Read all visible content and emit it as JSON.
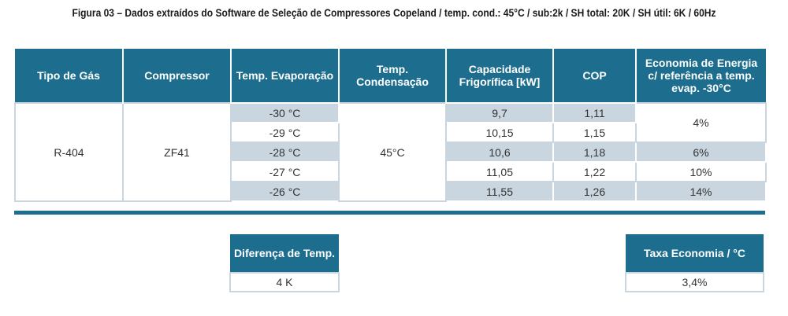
{
  "caption": "Figura 03 – Dados extraídos do Software de Seleção de Compressores Copeland / temp. cond.: 45°C / sub:2k / SH total: 20K / SH útil: 6K / 60Hz",
  "main_table": {
    "headers": [
      "Tipo de Gás",
      "Compressor",
      "Temp. Evaporação",
      "Temp. Condensação",
      "Capacidade Frigorífica [kW]",
      "COP",
      "Economia de Energia c/ referência a temp. evap. -30°C"
    ],
    "gas_type": "R-404",
    "compressor": "ZF41",
    "condensation_temp": "45°C",
    "rows": [
      {
        "evap": "-30 °C",
        "capacity": "9,7",
        "cop": "1,11"
      },
      {
        "evap": "-29 °C",
        "capacity": "10,15",
        "cop": "1,15"
      },
      {
        "evap": "-28 °C",
        "capacity": "10,6",
        "cop": "1,18"
      },
      {
        "evap": "-27 °C",
        "capacity": "11,05",
        "cop": "1,22"
      },
      {
        "evap": "-26 °C",
        "capacity": "11,55",
        "cop": "1,26"
      }
    ],
    "savings": [
      "4%",
      "6%",
      "10%",
      "14%"
    ]
  },
  "temp_difference": {
    "header": "Diferença de Temp.",
    "value": "4 K"
  },
  "savings_rate": {
    "header": "Taxa Economia / °C",
    "value": "3,4%"
  },
  "colors": {
    "header_bg": "#1d6e8e",
    "shade": "#c9d5df",
    "text": "#333333"
  }
}
